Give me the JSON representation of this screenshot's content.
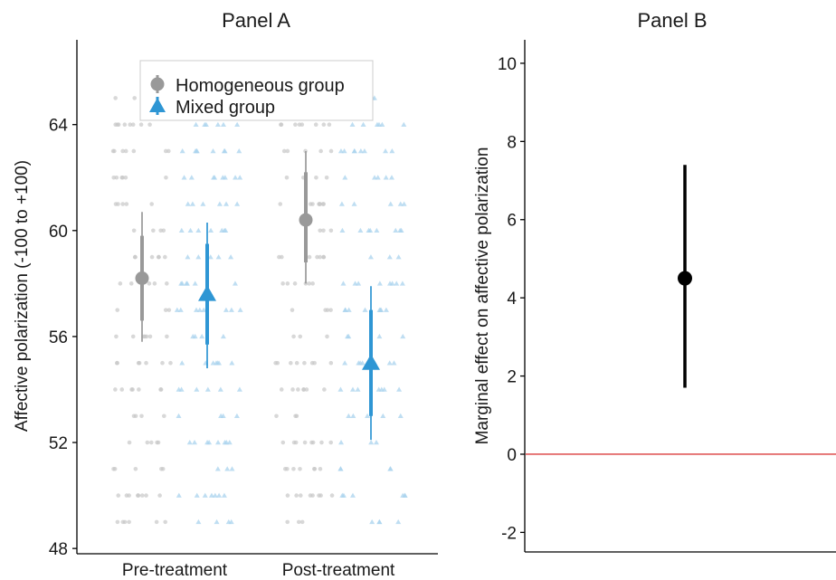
{
  "colors": {
    "homogeneous": "#999999",
    "mixed": "#2e96d4",
    "jitter_homogeneous": "#c8c8c8",
    "jitter_mixed": "#a9d3ee",
    "reference_line": "#e05a5a",
    "effect": "#000000",
    "axis": "#000000"
  },
  "chart_data": [
    {
      "panel": "A",
      "type": "scatter",
      "title": "Panel A",
      "xlabel": "",
      "ylabel": "Affective polarization (-100 to +100)",
      "categories": [
        "Pre-treatment",
        "Post-treatment"
      ],
      "ylim": [
        47.8,
        67.2
      ],
      "yticks": [
        48,
        52,
        56,
        60,
        64
      ],
      "grid": false,
      "legend_position": "top-center",
      "legend": [
        "Homogeneous group",
        "Mixed group"
      ],
      "series": [
        {
          "name": "Homogeneous group",
          "marker": "circle",
          "color_key": "homogeneous",
          "points": [
            {
              "category": "Pre-treatment",
              "mean": 58.2,
              "ci_inner": [
                56.6,
                59.8
              ],
              "ci_outer": [
                55.8,
                60.7
              ]
            },
            {
              "category": "Post-treatment",
              "mean": 60.4,
              "ci_inner": [
                58.8,
                62.2
              ],
              "ci_outer": [
                58.0,
                63.0
              ]
            }
          ]
        },
        {
          "name": "Mixed group",
          "marker": "triangle",
          "color_key": "mixed",
          "points": [
            {
              "category": "Pre-treatment",
              "mean": 57.6,
              "ci_inner": [
                55.7,
                59.5
              ],
              "ci_outer": [
                54.8,
                60.3
              ]
            },
            {
              "category": "Post-treatment",
              "mean": 55.0,
              "ci_inner": [
                53.0,
                57.0
              ],
              "ci_outer": [
                52.1,
                57.9
              ]
            }
          ]
        }
      ],
      "raw_observation_levels": [
        49,
        50,
        51,
        52,
        53,
        54,
        55,
        56,
        57,
        58,
        59,
        60,
        61,
        62,
        63,
        64,
        65
      ]
    },
    {
      "panel": "B",
      "type": "scatter",
      "title": "Panel B",
      "xlabel": "",
      "ylabel": "Marginal effect on affective polarization",
      "ylim": [
        -2.5,
        10.6
      ],
      "yticks": [
        -2,
        0,
        2,
        4,
        6,
        8,
        10
      ],
      "grid": false,
      "reference_line_y": 0,
      "series": [
        {
          "estimate": 4.5,
          "ci": [
            1.7,
            7.4
          ]
        }
      ]
    }
  ]
}
